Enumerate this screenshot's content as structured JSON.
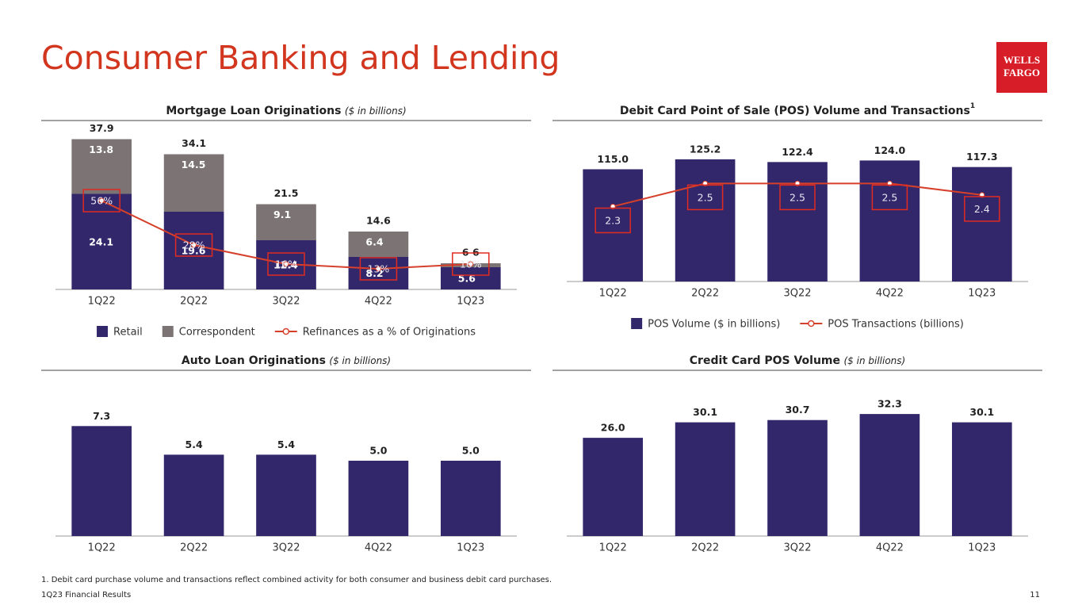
{
  "header": {
    "title": "Consumer Banking and Lending",
    "logo": [
      "WELLS",
      "FARGO"
    ]
  },
  "chart_data": [
    {
      "type": "stacked_bar_line",
      "title": "Mortgage Loan Originations",
      "subtitle": "($ in billions)",
      "categories": [
        "1Q22",
        "2Q22",
        "3Q22",
        "4Q22",
        "1Q23"
      ],
      "series": [
        {
          "name": "Retail",
          "color": "#33276b",
          "values": [
            24.1,
            19.6,
            12.4,
            8.2,
            5.6
          ]
        },
        {
          "name": "Correspondent",
          "color": "#7b7374",
          "values": [
            13.8,
            14.5,
            9.1,
            6.4,
            1.0
          ],
          "value_labels": [
            "13.8",
            "14.5",
            "9.1",
            "6.4",
            null
          ]
        },
        {
          "name": "Refinances as a % of Originations",
          "color": "#d6402b",
          "type": "line",
          "axis": "y2",
          "values": [
            56,
            28,
            16,
            13,
            16
          ],
          "value_labels": [
            "56%",
            "28%",
            "16%",
            "13%",
            "16%"
          ]
        }
      ],
      "totals": {
        "values": [
          37.9,
          34.1,
          21.5,
          14.6,
          6.6
        ],
        "value_labels": [
          "37.9",
          "34.1",
          "21.5",
          "14.6",
          "6 6"
        ]
      },
      "ylim": [
        0,
        40
      ],
      "y2lim": [
        0,
        100
      ],
      "legend": "bottom"
    },
    {
      "type": "bar_line",
      "title": "Debit Card Point of Sale (POS) Volume and Transactions",
      "footnote_ref": "1",
      "categories": [
        "1Q22",
        "2Q22",
        "3Q22",
        "4Q22",
        "1Q23"
      ],
      "series": [
        {
          "name": "POS Volume ($ in billions)",
          "color": "#33276b",
          "values": [
            115.0,
            125.2,
            122.4,
            124.0,
            117.3
          ],
          "value_labels": [
            "115.0",
            "125.2",
            "122.4",
            "124.0",
            "117.3"
          ]
        },
        {
          "name": "POS Transactions (billions)",
          "color": "#d6402b",
          "type": "line",
          "axis": "y2",
          "values": [
            2.3,
            2.5,
            2.5,
            2.5,
            2.4
          ]
        }
      ],
      "ylim": [
        0,
        130
      ],
      "y2lim": [
        1.65,
        2.75
      ],
      "legend": "bottom"
    },
    {
      "type": "bar",
      "title": "Auto Loan Originations",
      "subtitle": "($ in billions)",
      "categories": [
        "1Q22",
        "2Q22",
        "3Q22",
        "4Q22",
        "1Q23"
      ],
      "series": [
        {
          "color": "#33276b",
          "values": [
            7.3,
            5.4,
            5.4,
            5.0,
            5.0
          ],
          "value_labels": [
            "7.3",
            "5.4",
            "5.4",
            "5.0",
            "5.0"
          ]
        }
      ],
      "ylim": [
        0,
        8
      ]
    },
    {
      "type": "bar",
      "title": "Credit Card POS Volume",
      "subtitle": "($ in billions)",
      "categories": [
        "1Q22",
        "2Q22",
        "3Q22",
        "4Q22",
        "1Q23"
      ],
      "series": [
        {
          "color": "#33276b",
          "values": [
            26.0,
            30.1,
            30.7,
            32.3,
            30.1
          ],
          "value_labels": [
            "26.0",
            "30.1",
            "30.7",
            "32.3",
            "30.1"
          ]
        }
      ],
      "ylim": [
        0,
        34
      ]
    }
  ],
  "footnote": "1. Debit card purchase volume and transactions reflect combined activity for both consumer and business debit card purchases.",
  "footer": {
    "left": "1Q23 Financial Results",
    "page": "11"
  }
}
